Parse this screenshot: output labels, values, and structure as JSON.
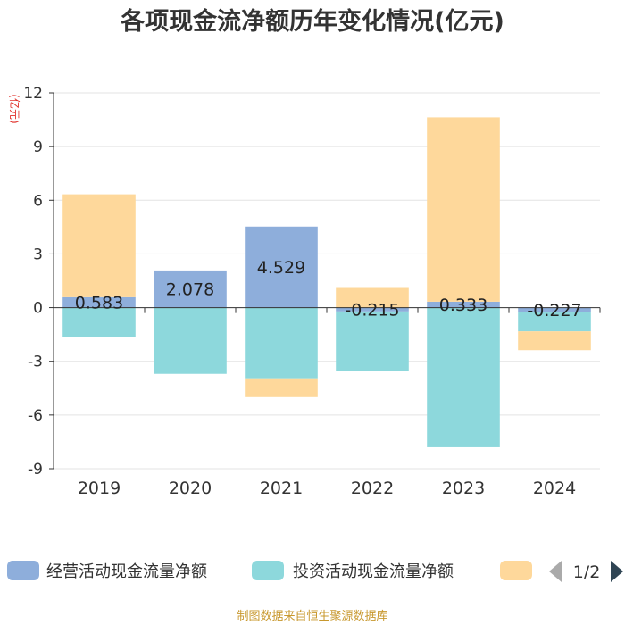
{
  "chart_data": {
    "type": "bar",
    "stacked": true,
    "title": "各项现金流净额历年变化情况(亿元)",
    "ylabel": "(亿元)",
    "ylim": [
      -9,
      12
    ],
    "yticks": [
      12,
      9,
      6,
      3,
      0,
      -3,
      -6,
      -9
    ],
    "categories": [
      "2019",
      "2020",
      "2021",
      "2022",
      "2023",
      "2024"
    ],
    "series": [
      {
        "name": "经营活动现金流量净额",
        "color": "#8eaedb",
        "values": [
          0.583,
          2.078,
          4.529,
          -0.215,
          0.333,
          -0.227
        ],
        "labels": [
          "0.583",
          "2.078",
          "4.529",
          "-0.215",
          "0.333",
          "-0.227"
        ]
      },
      {
        "name": "投资活动现金流量净额",
        "color": "#8dd8dc",
        "values": [
          -1.65,
          -3.7,
          -3.95,
          -3.3,
          -7.8,
          -1.1
        ]
      },
      {
        "name": "",
        "color": "#fed89b",
        "values": [
          5.75,
          0.0,
          -1.05,
          1.1,
          10.3,
          -1.05
        ]
      }
    ],
    "legend": {
      "position": "bottom",
      "page": "1/2"
    }
  },
  "footer": "制图数据来自恒生聚源数据库"
}
